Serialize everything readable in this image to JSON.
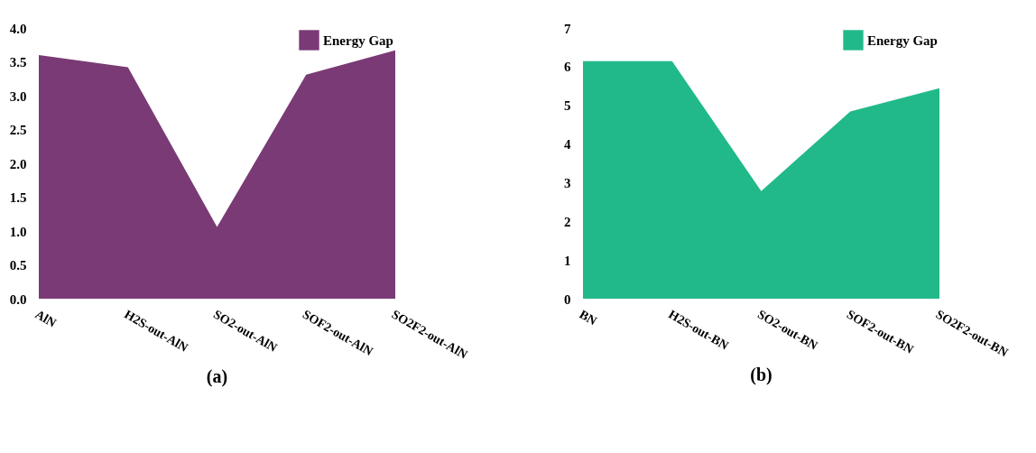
{
  "chart_data": [
    {
      "type": "area",
      "title": "(a)",
      "categories": [
        "AlN",
        "H2S-out-AlN",
        "SO2-out-AlN",
        "SOF2-out-AlN",
        "SO2F2-out-AlN"
      ],
      "series": [
        {
          "name": "Energy Gap",
          "color": "#7a3a75",
          "values": [
            3.6,
            3.42,
            1.06,
            3.31,
            3.67
          ]
        }
      ],
      "ylim": [
        0,
        4
      ],
      "yticks": [
        {
          "value": 0,
          "label": "0.0"
        },
        {
          "value": 0.5,
          "label": "0.5"
        },
        {
          "value": 1,
          "label": "1.0"
        },
        {
          "value": 1.5,
          "label": "1.5"
        },
        {
          "value": 2,
          "label": "2.0"
        },
        {
          "value": 2.5,
          "label": "2.5"
        },
        {
          "value": 3,
          "label": "3.0"
        },
        {
          "value": 3.5,
          "label": "3.5"
        },
        {
          "value": 4,
          "label": "4.0"
        }
      ],
      "legend": "top right",
      "grid": false
    },
    {
      "type": "area",
      "title": "(b)",
      "categories": [
        "BN",
        "H2S-out-BN",
        "SO2-out-BN",
        "SOF2-out-BN",
        "SO2F2-out-BN"
      ],
      "series": [
        {
          "name": "Energy Gap",
          "color": "#22b98a",
          "values": [
            6.14,
            6.14,
            2.78,
            4.84,
            5.44
          ]
        }
      ],
      "ylim": [
        0,
        7
      ],
      "yticks": [
        0,
        1,
        2,
        3,
        4,
        5,
        6,
        7
      ],
      "legend": "top right",
      "grid": false
    }
  ]
}
